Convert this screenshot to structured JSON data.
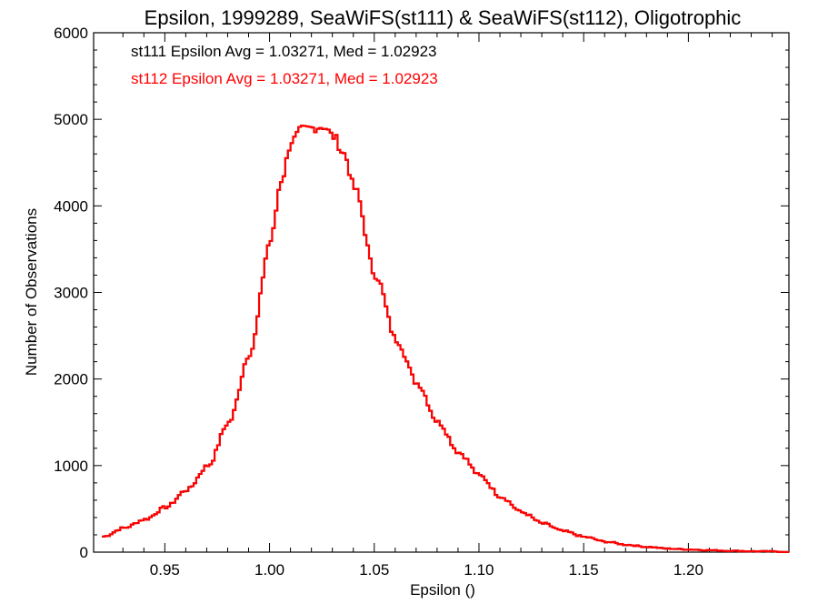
{
  "chart_data": {
    "type": "line",
    "step": true,
    "title": "Epsilon, 1999289, SeaWiFS(st111) & SeaWiFS(st112), Oligotrophic",
    "xlabel": "Epsilon ()",
    "ylabel": "Number of Observations",
    "xlim": [
      0.916,
      1.248
    ],
    "ylim": [
      0,
      6000
    ],
    "xticks": [
      0.95,
      1.0,
      1.05,
      1.1,
      1.15,
      1.2
    ],
    "xtick_labels": [
      "0.95",
      "1.00",
      "1.05",
      "1.10",
      "1.15",
      "1.20"
    ],
    "yticks": [
      0,
      1000,
      2000,
      3000,
      4000,
      5000,
      6000
    ],
    "ytick_labels": [
      "0",
      "1000",
      "2000",
      "3000",
      "4000",
      "5000",
      "6000"
    ],
    "grid": false,
    "annotations": [
      {
        "text": "st111 Epsilon Avg = 1.03271, Med = 1.02923",
        "color": "#000000"
      },
      {
        "text": "st112 Epsilon Avg = 1.03271, Med = 1.02923",
        "color": "#ff0000"
      }
    ],
    "x": [
      0.92,
      0.93,
      0.94,
      0.95,
      0.96,
      0.97,
      0.98,
      0.99,
      1.0,
      1.005,
      1.01,
      1.015,
      1.02,
      1.025,
      1.03,
      1.035,
      1.04,
      1.05,
      1.06,
      1.07,
      1.08,
      1.09,
      1.1,
      1.11,
      1.12,
      1.13,
      1.14,
      1.15,
      1.16,
      1.17,
      1.18,
      1.19,
      1.2,
      1.21,
      1.22,
      1.23,
      1.24,
      1.245
    ],
    "series": [
      {
        "name": "st111",
        "color": "#000000",
        "values": [
          180,
          280,
          380,
          520,
          720,
          1000,
          1500,
          2300,
          3600,
          4300,
          4750,
          4880,
          4900,
          4920,
          4800,
          4600,
          4200,
          3200,
          2450,
          1950,
          1500,
          1150,
          880,
          640,
          460,
          330,
          240,
          175,
          120,
          85,
          60,
          40,
          30,
          22,
          15,
          10,
          8,
          5
        ]
      },
      {
        "name": "st112",
        "color": "#ff0000",
        "values": [
          180,
          280,
          380,
          520,
          720,
          1000,
          1500,
          2300,
          3600,
          4300,
          4750,
          4880,
          4900,
          4920,
          4800,
          4600,
          4200,
          3200,
          2450,
          1950,
          1500,
          1150,
          880,
          640,
          460,
          330,
          240,
          175,
          120,
          85,
          60,
          40,
          30,
          22,
          15,
          10,
          8,
          5
        ]
      }
    ]
  }
}
